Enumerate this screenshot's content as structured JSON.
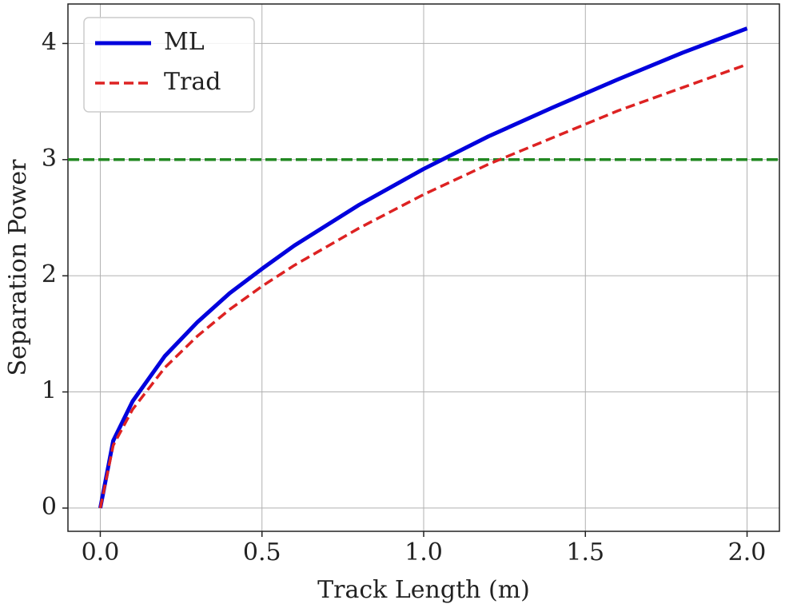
{
  "chart_data": {
    "type": "line",
    "xlabel": "Track Length (m)",
    "ylabel": "Separation Power",
    "x": [
      0,
      0.04,
      0.1,
      0.2,
      0.3,
      0.4,
      0.5,
      0.6,
      0.8,
      1.0,
      1.2,
      1.4,
      1.6,
      1.8,
      2.0
    ],
    "series": [
      {
        "name": "ML",
        "color": "#0000dd",
        "dash": "solid",
        "values": [
          0,
          0.58,
          0.92,
          1.31,
          1.6,
          1.85,
          2.06,
          2.26,
          2.61,
          2.92,
          3.2,
          3.45,
          3.69,
          3.92,
          4.13
        ]
      },
      {
        "name": "Trad",
        "color": "#dd2222",
        "dash": "dashed",
        "values": [
          0,
          0.54,
          0.85,
          1.21,
          1.48,
          1.71,
          1.91,
          2.09,
          2.41,
          2.7,
          2.96,
          3.19,
          3.42,
          3.62,
          3.82
        ]
      }
    ],
    "hline": {
      "value": 3,
      "color": "#228822"
    },
    "xlim": [
      -0.1,
      2.1
    ],
    "ylim": [
      -0.2,
      4.34
    ],
    "xticks": [
      {
        "value": 0,
        "label": "0.0"
      },
      {
        "value": 0.5,
        "label": "0.5"
      },
      {
        "value": 1,
        "label": "1.0"
      },
      {
        "value": 1.5,
        "label": "1.5"
      },
      {
        "value": 2,
        "label": "2.0"
      }
    ],
    "yticks": [
      0,
      1,
      2,
      3,
      4
    ],
    "grid": true,
    "legend": "upper-left"
  }
}
